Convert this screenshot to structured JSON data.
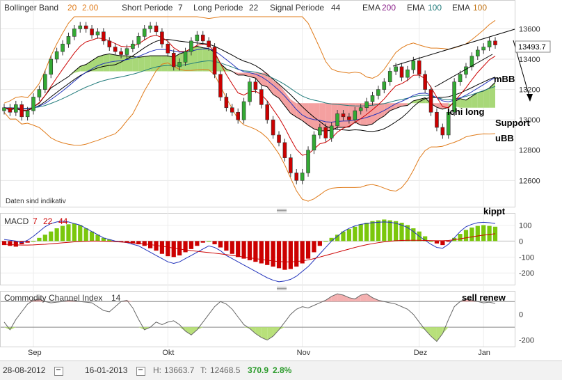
{
  "legend": {
    "bb_label": "Bollinger Band",
    "bb_p1": "20",
    "bb_p2": "2.00",
    "short_label": "Short Periode",
    "short_val": "7",
    "long_label": "Long Periode",
    "long_val": "22",
    "signal_label": "Signal Periode",
    "signal_val": "44",
    "ema1_label": "EMA",
    "ema1_val": "200",
    "ema2_label": "EMA",
    "ema2_val": "100",
    "ema3_label": "EMA",
    "ema3_val": "100"
  },
  "colors": {
    "bb": "#e07b1a",
    "short": "#333333",
    "long": "#333333",
    "signal": "#333333",
    "ema200": "#8a1f8a",
    "ema100a": "#1f7a7a",
    "ema100b": "#c07010",
    "up": "#33aa33",
    "down": "#cc0000",
    "cloud_green": "#a8d878",
    "cloud_red": "#f4a0a0",
    "macd_line": "#2233bb",
    "signal_line": "#cc0000",
    "cci_line": "#666666"
  },
  "disclaimer": "Daten sind indikativ",
  "current_price": "13493.7",
  "annotations": {
    "mbb": "mBB",
    "ichi": "Ichi long",
    "support": "Support",
    "ubb": "uBB",
    "kippt": "kippt",
    "sell": "sell renew"
  },
  "macd_title": {
    "label": "MACD",
    "p1": "7",
    "p2": "22",
    "p3": "44"
  },
  "cci_title": {
    "label": "Commodity Channel Index",
    "p1": "14"
  },
  "footer": {
    "start_date": "28-08-2012",
    "end_date": "16-01-2013",
    "high_label": "H:",
    "high_val": "13663.7",
    "low_label": "T:",
    "low_val": "12468.5",
    "change": "370.9",
    "change_pct": "2.8%"
  },
  "chart_data": [
    {
      "type": "candlestick",
      "title": "",
      "x_labels": [
        "Sep",
        "Okt",
        "Nov",
        "Dez",
        "Jan"
      ],
      "ylim": [
        12450,
        13680
      ],
      "y_ticks": [
        12600,
        12800,
        13000,
        13200,
        13400,
        13600
      ],
      "y_tick_labels": [
        "12600",
        "12800",
        "13000",
        "13200",
        "13400",
        "13600"
      ],
      "grid": true,
      "close": [
        13080,
        13050,
        13100,
        13020,
        13060,
        13150,
        13200,
        13300,
        13400,
        13450,
        13500,
        13550,
        13600,
        13620,
        13600,
        13560,
        13580,
        13520,
        13480,
        13450,
        13430,
        13470,
        13500,
        13550,
        13600,
        13620,
        13580,
        13500,
        13440,
        13350,
        13380,
        13450,
        13520,
        13560,
        13520,
        13480,
        13300,
        13150,
        13080,
        13050,
        13000,
        13120,
        13250,
        13200,
        13100,
        13000,
        12900,
        12850,
        12750,
        12650,
        12600,
        12650,
        12800,
        12900,
        12950,
        12880,
        12960,
        13040,
        13020,
        13000,
        13060,
        13080,
        13120,
        13160,
        13200,
        13250,
        13320,
        13350,
        13280,
        13330,
        13390,
        13300,
        13200,
        13050,
        12950,
        12900,
        13050,
        13250,
        13300,
        13350,
        13420,
        13460,
        13480,
        13520,
        13493.7
      ]
    },
    {
      "type": "bar+line",
      "title": "MACD 7 22 44",
      "ylim": [
        -260,
        150
      ],
      "y_ticks": [
        100,
        0,
        -100,
        -200
      ],
      "y_tick_labels": [
        "100",
        "0",
        "-100",
        "-200"
      ],
      "histogram": [
        -25,
        -30,
        -35,
        -20,
        -10,
        0,
        20,
        40,
        60,
        80,
        95,
        105,
        110,
        100,
        80,
        60,
        40,
        20,
        10,
        0,
        -5,
        -10,
        -15,
        -20,
        -30,
        -45,
        -60,
        -80,
        -95,
        -100,
        -90,
        -70,
        -50,
        -30,
        -10,
        0,
        -20,
        -40,
        -60,
        -80,
        -100,
        -110,
        -120,
        -130,
        -140,
        -150,
        -160,
        -170,
        -180,
        -175,
        -160,
        -140,
        -110,
        -70,
        -30,
        0,
        20,
        40,
        60,
        75,
        90,
        105,
        115,
        125,
        130,
        135,
        130,
        125,
        115,
        100,
        80,
        60,
        30,
        0,
        -15,
        -25,
        -5,
        20,
        45,
        70,
        85,
        95,
        100,
        95,
        90
      ],
      "macd": [
        10,
        5,
        0,
        -10,
        5,
        30,
        60,
        90,
        110,
        120,
        125,
        120,
        110,
        100,
        80,
        60,
        40,
        20,
        10,
        0,
        -5,
        -10,
        -20,
        -30,
        -50,
        -70,
        -90,
        -110,
        -130,
        -140,
        -130,
        -110,
        -90,
        -70,
        -50,
        -30,
        -40,
        -60,
        -90,
        -110,
        -130,
        -150,
        -170,
        -190,
        -210,
        -230,
        -245,
        -255,
        -250,
        -240,
        -220,
        -190,
        -160,
        -120,
        -80,
        -40,
        0,
        30,
        60,
        80,
        95,
        105,
        110,
        115,
        118,
        120,
        118,
        112,
        100,
        85,
        60,
        30,
        5,
        -20,
        -40,
        -45,
        -20,
        20,
        60,
        90,
        105,
        115,
        118,
        115,
        110
      ],
      "signal": [
        -20,
        -22,
        -24,
        -25,
        -25,
        -24,
        -22,
        -20,
        -17,
        -14,
        -11,
        -8,
        -5,
        -3,
        -1,
        0,
        0,
        -1,
        -2,
        -4,
        -6,
        -8,
        -11,
        -14,
        -18,
        -22,
        -27,
        -32,
        -38,
        -44,
        -50,
        -55,
        -60,
        -64,
        -68,
        -72,
        -76,
        -80,
        -85,
        -90,
        -95,
        -100,
        -105,
        -110,
        -115,
        -120,
        -125,
        -128,
        -130,
        -130,
        -128,
        -124,
        -118,
        -110,
        -100,
        -90,
        -80,
        -70,
        -60,
        -50,
        -40,
        -31,
        -23,
        -16,
        -10,
        -5,
        -1,
        2,
        4,
        5,
        5,
        5,
        4,
        3,
        2,
        2,
        4,
        8,
        14,
        20,
        26,
        32,
        37,
        42,
        46
      ]
    },
    {
      "type": "area+line",
      "title": "Commodity Channel Index 14",
      "ylim": [
        -240,
        150
      ],
      "y_ticks": [
        0,
        -200
      ],
      "y_tick_labels": [
        "0",
        "-200"
      ],
      "values": [
        -60,
        -120,
        -40,
        20,
        80,
        110,
        120,
        100,
        90,
        95,
        100,
        110,
        105,
        100,
        95,
        90,
        60,
        30,
        20,
        60,
        100,
        110,
        50,
        -40,
        -120,
        -100,
        -60,
        -80,
        -60,
        -50,
        -80,
        -130,
        -160,
        -120,
        -60,
        0,
        60,
        100,
        80,
        40,
        -20,
        -80,
        -110,
        -150,
        -180,
        -200,
        -170,
        -120,
        -60,
        0,
        40,
        60,
        50,
        70,
        90,
        110,
        140,
        160,
        150,
        130,
        120,
        150,
        160,
        130,
        110,
        100,
        90,
        80,
        60,
        40,
        0,
        -60,
        -120,
        -170,
        -210,
        -150,
        -40,
        60,
        100,
        120,
        110,
        100,
        90,
        95,
        85
      ]
    }
  ]
}
